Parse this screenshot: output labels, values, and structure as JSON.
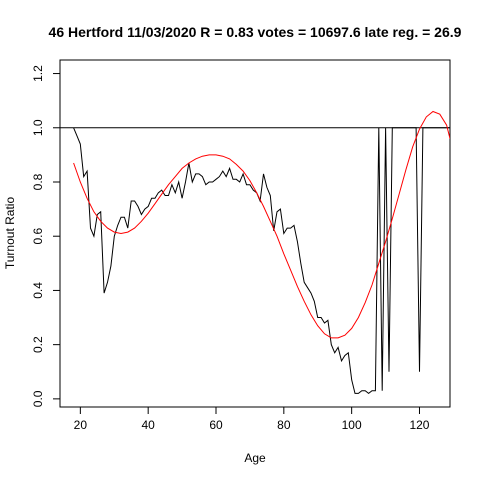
{
  "chart_data": {
    "type": "line",
    "title": "46 Hertford 11/03/2020 R = 0.83 votes = 10697.6 late reg. = 26.9",
    "xlabel": "Age",
    "ylabel": "Turnout Ratio",
    "xlim": [
      14,
      129
    ],
    "ylim": [
      -0.03,
      1.25
    ],
    "xticks": [
      20,
      40,
      60,
      80,
      100,
      120
    ],
    "yticks": [
      0.0,
      0.2,
      0.4,
      0.6,
      0.8,
      1.0,
      1.2
    ],
    "xtick_labels": [
      "20",
      "40",
      "60",
      "80",
      "100",
      "120"
    ],
    "ytick_labels": [
      "0.0",
      "0.2",
      "0.4",
      "0.6",
      "0.8",
      "1.0",
      "1.2"
    ],
    "reference_line": {
      "y": 1.0,
      "color": "#000000"
    },
    "grid": false,
    "series": [
      {
        "style": "observed",
        "color": "#000000",
        "x": [
          18,
          19,
          20,
          21,
          22,
          23,
          24,
          25,
          26,
          27,
          28,
          29,
          30,
          31,
          32,
          33,
          34,
          35,
          36,
          37,
          38,
          39,
          40,
          41,
          42,
          43,
          44,
          45,
          46,
          47,
          48,
          49,
          50,
          51,
          52,
          53,
          54,
          55,
          56,
          57,
          58,
          59,
          60,
          61,
          62,
          63,
          64,
          65,
          66,
          67,
          68,
          69,
          70,
          71,
          72,
          73,
          74,
          75,
          76,
          77,
          78,
          79,
          80,
          81,
          82,
          83,
          84,
          85,
          86,
          87,
          88,
          89,
          90,
          91,
          92,
          93,
          94,
          95,
          96,
          97,
          98,
          99,
          100,
          101,
          102,
          103,
          104,
          105,
          106,
          107,
          108,
          109,
          110,
          111,
          112,
          113,
          114,
          115,
          116,
          117,
          118,
          119,
          120,
          121,
          122,
          123,
          124,
          125,
          126,
          127,
          128,
          129
        ],
        "y": [
          1.0,
          0.97,
          0.94,
          0.82,
          0.84,
          0.63,
          0.6,
          0.68,
          0.69,
          0.39,
          0.43,
          0.49,
          0.6,
          0.64,
          0.67,
          0.67,
          0.63,
          0.73,
          0.73,
          0.71,
          0.68,
          0.7,
          0.71,
          0.74,
          0.74,
          0.76,
          0.77,
          0.75,
          0.75,
          0.79,
          0.76,
          0.8,
          0.74,
          0.8,
          0.87,
          0.8,
          0.83,
          0.83,
          0.82,
          0.79,
          0.8,
          0.8,
          0.81,
          0.82,
          0.84,
          0.82,
          0.85,
          0.81,
          0.81,
          0.8,
          0.83,
          0.79,
          0.79,
          0.77,
          0.76,
          0.73,
          0.83,
          0.78,
          0.75,
          0.62,
          0.69,
          0.7,
          0.61,
          0.63,
          0.63,
          0.64,
          0.58,
          0.5,
          0.43,
          0.41,
          0.39,
          0.36,
          0.3,
          0.3,
          0.28,
          0.29,
          0.2,
          0.17,
          0.19,
          0.14,
          0.16,
          0.17,
          0.07,
          0.02,
          0.02,
          0.03,
          0.03,
          0.02,
          0.03,
          0.03,
          1.0,
          0.03,
          1.0,
          0.1,
          1.0,
          1.0,
          1.0,
          1.0,
          1.0,
          1.0,
          1.0,
          1.0,
          0.1,
          1.0,
          1.0,
          1.0,
          1.0,
          1.0,
          1.0,
          1.0,
          1.0,
          1.0
        ]
      },
      {
        "style": "fitted",
        "color": "#ff0000",
        "x": [
          18,
          20,
          22,
          24,
          26,
          28,
          30,
          32,
          34,
          36,
          38,
          40,
          42,
          44,
          46,
          48,
          50,
          52,
          54,
          56,
          58,
          60,
          62,
          64,
          66,
          68,
          70,
          72,
          74,
          76,
          78,
          80,
          82,
          84,
          86,
          88,
          90,
          92,
          94,
          96,
          98,
          100,
          102,
          104,
          106,
          108,
          110,
          112,
          114,
          116,
          118,
          120,
          122,
          124,
          126,
          128,
          129
        ],
        "y": [
          0.87,
          0.8,
          0.74,
          0.69,
          0.655,
          0.63,
          0.615,
          0.61,
          0.615,
          0.63,
          0.655,
          0.685,
          0.72,
          0.755,
          0.79,
          0.82,
          0.85,
          0.87,
          0.885,
          0.895,
          0.9,
          0.9,
          0.895,
          0.885,
          0.865,
          0.84,
          0.805,
          0.76,
          0.71,
          0.655,
          0.6,
          0.535,
          0.475,
          0.415,
          0.36,
          0.31,
          0.27,
          0.24,
          0.225,
          0.225,
          0.235,
          0.26,
          0.3,
          0.355,
          0.42,
          0.5,
          0.58,
          0.665,
          0.755,
          0.845,
          0.93,
          0.995,
          1.04,
          1.06,
          1.05,
          1.01,
          0.96
        ]
      }
    ]
  }
}
